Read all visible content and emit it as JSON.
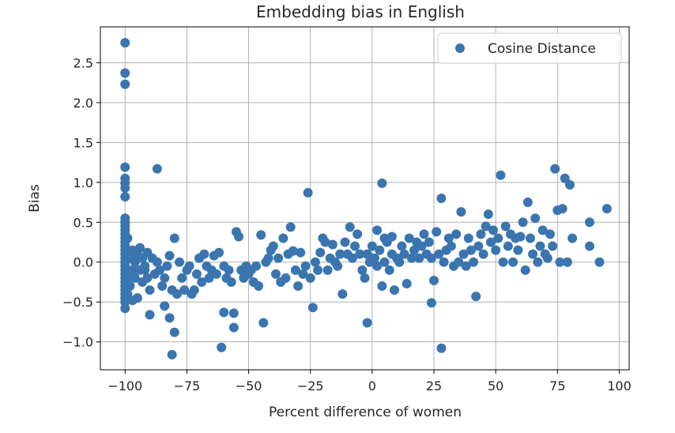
{
  "chart_data": {
    "type": "scatter",
    "title": "Embedding bias in English",
    "xlabel": "Percent difference of women",
    "ylabel": "Bias",
    "xlim": [
      -110,
      104
    ],
    "ylim": [
      -1.35,
      2.95
    ],
    "xticks": [
      -100,
      -75,
      -50,
      -25,
      0,
      25,
      50,
      75,
      100
    ],
    "xtick_labels": [
      "−100",
      "−75",
      "−50",
      "−25",
      "0",
      "25",
      "50",
      "75",
      "100"
    ],
    "yticks": [
      -1.0,
      -0.5,
      0.0,
      0.5,
      1.0,
      1.5,
      2.0,
      2.5
    ],
    "ytick_labels": [
      "−1.0",
      "−0.5",
      "0.0",
      "0.5",
      "1.0",
      "1.5",
      "2.0",
      "2.5"
    ],
    "grid": true,
    "legend_position": "top-right",
    "color": "#3a75b0",
    "series": [
      {
        "name": "Cosine Distance",
        "points": [
          [
            -100,
            2.75
          ],
          [
            -100,
            2.37
          ],
          [
            -100,
            2.23
          ],
          [
            -100,
            1.19
          ],
          [
            -100,
            1.05
          ],
          [
            -100,
            0.99
          ],
          [
            -100,
            0.93
          ],
          [
            -100,
            0.82
          ],
          [
            -100,
            0.55
          ],
          [
            -100,
            0.5
          ],
          [
            -100,
            0.45
          ],
          [
            -100,
            0.4
          ],
          [
            -100,
            0.35
          ],
          [
            -100,
            0.3
          ],
          [
            -100,
            0.25
          ],
          [
            -100,
            0.2
          ],
          [
            -100,
            0.15
          ],
          [
            -100,
            0.1
          ],
          [
            -100,
            0.05
          ],
          [
            -100,
            0.0
          ],
          [
            -100,
            -0.05
          ],
          [
            -100,
            -0.1
          ],
          [
            -100,
            -0.15
          ],
          [
            -100,
            -0.2
          ],
          [
            -100,
            -0.25
          ],
          [
            -100,
            -0.3
          ],
          [
            -100,
            -0.35
          ],
          [
            -100,
            -0.4
          ],
          [
            -100,
            -0.45
          ],
          [
            -100,
            -0.5
          ],
          [
            -100,
            -0.58
          ],
          [
            -99,
            0.3
          ],
          [
            -99,
            0.1
          ],
          [
            -99,
            -0.2
          ],
          [
            -99,
            -0.4
          ],
          [
            -98,
            0.05
          ],
          [
            -98,
            -0.3
          ],
          [
            -97,
            0.15
          ],
          [
            -97,
            -0.1
          ],
          [
            -97,
            -0.48
          ],
          [
            -96,
            -0.2
          ],
          [
            -96,
            0.0
          ],
          [
            -95,
            0.1
          ],
          [
            -95,
            -0.45
          ],
          [
            -94,
            -0.1
          ],
          [
            -94,
            0.18
          ],
          [
            -93,
            -0.25
          ],
          [
            -93,
            0.05
          ],
          [
            -92,
            -0.05
          ],
          [
            -92,
            -0.1
          ],
          [
            -91,
            0.12
          ],
          [
            -91,
            -0.2
          ],
          [
            -90,
            -0.35
          ],
          [
            -90,
            -0.66
          ],
          [
            -89,
            0.05
          ],
          [
            -88,
            -0.15
          ],
          [
            -87,
            0.0
          ],
          [
            -87,
            1.17
          ],
          [
            -86,
            -0.1
          ],
          [
            -85,
            -0.3
          ],
          [
            -84,
            -0.55
          ],
          [
            -84,
            -0.2
          ],
          [
            -83,
            -0.05
          ],
          [
            -82,
            -0.7
          ],
          [
            -82,
            0.08
          ],
          [
            -81,
            -0.35
          ],
          [
            -80,
            0.3
          ],
          [
            -80,
            -0.88
          ],
          [
            -81,
            -1.16
          ],
          [
            -79,
            -0.4
          ],
          [
            -78,
            0.0
          ],
          [
            -77,
            -0.2
          ],
          [
            -76,
            -0.35
          ],
          [
            -75,
            -0.1
          ],
          [
            -74,
            -0.05
          ],
          [
            -73,
            -0.4
          ],
          [
            -72,
            -0.35
          ],
          [
            -71,
            -0.15
          ],
          [
            -70,
            0.05
          ],
          [
            -69,
            -0.25
          ],
          [
            -68,
            0.1
          ],
          [
            -67,
            -0.05
          ],
          [
            -66,
            -0.2
          ],
          [
            -65,
            -0.1
          ],
          [
            -64,
            0.08
          ],
          [
            -63,
            -0.15
          ],
          [
            -62,
            0.12
          ],
          [
            -61,
            -1.07
          ],
          [
            -60,
            -0.63
          ],
          [
            -60,
            -0.05
          ],
          [
            -59,
            -0.2
          ],
          [
            -58,
            -0.1
          ],
          [
            -57,
            -0.25
          ],
          [
            -56,
            -0.82
          ],
          [
            -56,
            -0.64
          ],
          [
            -55,
            0.38
          ],
          [
            -54,
            0.32
          ],
          [
            -53,
            -0.1
          ],
          [
            -52,
            -0.2
          ],
          [
            -51,
            -0.05
          ],
          [
            -50,
            -0.15
          ],
          [
            -49,
            -0.1
          ],
          [
            -48,
            -0.25
          ],
          [
            -47,
            -0.05
          ],
          [
            -46,
            -0.3
          ],
          [
            -45,
            0.34
          ],
          [
            -44,
            -0.76
          ],
          [
            -43,
            0.0
          ],
          [
            -42,
            0.05
          ],
          [
            -41,
            0.15
          ],
          [
            -40,
            0.2
          ],
          [
            -39,
            -0.15
          ],
          [
            -38,
            0.05
          ],
          [
            -37,
            -0.25
          ],
          [
            -36,
            0.3
          ],
          [
            -35,
            -0.2
          ],
          [
            -34,
            0.1
          ],
          [
            -33,
            0.44
          ],
          [
            -32,
            0.14
          ],
          [
            -31,
            -0.1
          ],
          [
            -30,
            -0.3
          ],
          [
            -29,
            0.12
          ],
          [
            -28,
            -0.15
          ],
          [
            -27,
            -0.05
          ],
          [
            -26,
            0.87
          ],
          [
            -25,
            -0.2
          ],
          [
            -24,
            -0.57
          ],
          [
            -23,
            0.0
          ],
          [
            -22,
            -0.1
          ],
          [
            -21,
            0.12
          ],
          [
            -20,
            0.3
          ],
          [
            -19,
            0.25
          ],
          [
            -18,
            -0.1
          ],
          [
            -17,
            0.05
          ],
          [
            -16,
            0.22
          ],
          [
            -15,
            0.0
          ],
          [
            -14,
            -0.05
          ],
          [
            -13,
            0.1
          ],
          [
            -12,
            -0.4
          ],
          [
            -11,
            0.25
          ],
          [
            -10,
            0.1
          ],
          [
            -9,
            0.44
          ],
          [
            -8,
            0.05
          ],
          [
            -7,
            0.2
          ],
          [
            -6,
            0.35
          ],
          [
            -5,
            0.1
          ],
          [
            -4,
            -0.1
          ],
          [
            -3,
            -0.2
          ],
          [
            -2,
            -0.76
          ],
          [
            -2,
            0.1
          ],
          [
            -1,
            0.0
          ],
          [
            0,
            0.2
          ],
          [
            1,
            0.05
          ],
          [
            2,
            -0.05
          ],
          [
            2,
            0.4
          ],
          [
            3,
            0.15
          ],
          [
            4,
            0.99
          ],
          [
            4,
            -0.3
          ],
          [
            5,
            0.3
          ],
          [
            5,
            0.0
          ],
          [
            6,
            0.25
          ],
          [
            7,
            -0.1
          ],
          [
            8,
            0.1
          ],
          [
            8,
            0.32
          ],
          [
            9,
            -0.35
          ],
          [
            10,
            0.05
          ],
          [
            11,
            0.0
          ],
          [
            12,
            0.2
          ],
          [
            13,
            0.1
          ],
          [
            14,
            -0.27
          ],
          [
            15,
            0.3
          ],
          [
            16,
            0.05
          ],
          [
            17,
            0.15
          ],
          [
            18,
            0.25
          ],
          [
            19,
            0.05
          ],
          [
            20,
            0.2
          ],
          [
            21,
            0.35
          ],
          [
            22,
            0.1
          ],
          [
            23,
            0.25
          ],
          [
            24,
            -0.51
          ],
          [
            24,
            0.05
          ],
          [
            25,
            -0.23
          ],
          [
            26,
            0.38
          ],
          [
            27,
            0.1
          ],
          [
            28,
            0.8
          ],
          [
            28,
            -1.08
          ],
          [
            29,
            0.0
          ],
          [
            30,
            0.15
          ],
          [
            31,
            0.3
          ],
          [
            32,
            0.2
          ],
          [
            33,
            -0.05
          ],
          [
            34,
            0.35
          ],
          [
            35,
            0.0
          ],
          [
            36,
            0.63
          ],
          [
            37,
            0.1
          ],
          [
            38,
            -0.05
          ],
          [
            39,
            0.3
          ],
          [
            40,
            0.15
          ],
          [
            41,
            0.0
          ],
          [
            42,
            -0.43
          ],
          [
            43,
            0.2
          ],
          [
            44,
            0.35
          ],
          [
            45,
            0.1
          ],
          [
            46,
            0.45
          ],
          [
            47,
            0.6
          ],
          [
            48,
            0.25
          ],
          [
            49,
            0.4
          ],
          [
            50,
            0.15
          ],
          [
            51,
            0.3
          ],
          [
            52,
            1.09
          ],
          [
            53,
            0.0
          ],
          [
            54,
            0.45
          ],
          [
            55,
            0.2
          ],
          [
            56,
            0.35
          ],
          [
            57,
            0.0
          ],
          [
            58,
            0.3
          ],
          [
            59,
            0.15
          ],
          [
            60,
            0.32
          ],
          [
            61,
            0.5
          ],
          [
            62,
            -0.1
          ],
          [
            63,
            0.75
          ],
          [
            64,
            0.3
          ],
          [
            65,
            0.1
          ],
          [
            66,
            0.55
          ],
          [
            67,
            0.0
          ],
          [
            68,
            0.2
          ],
          [
            69,
            0.4
          ],
          [
            70,
            0.1
          ],
          [
            71,
            0.05
          ],
          [
            72,
            0.35
          ],
          [
            73,
            0.2
          ],
          [
            74,
            1.17
          ],
          [
            75,
            0.65
          ],
          [
            76,
            0.0
          ],
          [
            77,
            0.67
          ],
          [
            78,
            1.05
          ],
          [
            79,
            0.0
          ],
          [
            80,
            0.97
          ],
          [
            81,
            0.3
          ],
          [
            88,
            0.5
          ],
          [
            88,
            0.2
          ],
          [
            92,
            0.0
          ],
          [
            95,
            0.67
          ]
        ]
      }
    ]
  }
}
